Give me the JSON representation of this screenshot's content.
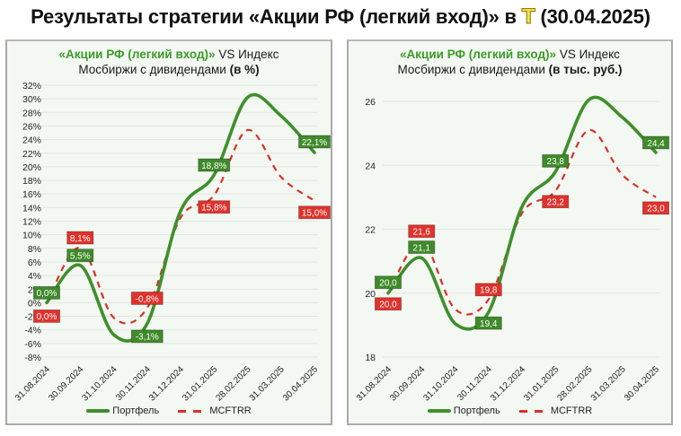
{
  "page": {
    "title_prefix": "Результаты стратегии «Акции РФ (легкий вход)» в",
    "logo": "Т",
    "title_suffix": "(30.04.2025)"
  },
  "colors": {
    "portfolio": "#3f8f2c",
    "portfolio_label_bg": "#3f8a2a",
    "index": "#d9302a",
    "index_label_bg": "#e0322c",
    "panel_bg": "#f4f8f2",
    "grid": "#e2e6e0"
  },
  "legend": {
    "portfolio": "Портфель",
    "index": "MCFTRR"
  },
  "charts": [
    {
      "title_green": "«Акции РФ (легкий вход)»",
      "title_rest_line1": " VS Индекс",
      "title_line2": "Мосбиржи с дивидендами ",
      "title_unit": "(в %)"
    },
    {
      "title_green": "«Акции РФ (легкий вход)»",
      "title_rest_line1": " VS Индекс",
      "title_line2": "Мосбиржи с дивидендами ",
      "title_unit": "(в тыс. руб.)"
    }
  ],
  "chart_data": [
    {
      "type": "line",
      "title": "«Акции РФ (легкий вход)» VS Индекс Мосбиржи с дивидендами (в %)",
      "xlabel": "",
      "ylabel": "",
      "x": [
        "31.08.2024",
        "30.09.2024",
        "31.10.2024",
        "30.11.2024",
        "31.12.2024",
        "31.01.2025",
        "28.02.2025",
        "31.03.2025",
        "30.04.2025"
      ],
      "series": [
        {
          "name": "Портфель",
          "style": "solid",
          "values": [
            0.0,
            5.5,
            -4.7,
            -3.1,
            13.5,
            18.8,
            30.2,
            27.5,
            22.1
          ]
        },
        {
          "name": "MCFTRR",
          "style": "dashed",
          "values": [
            0.0,
            8.1,
            -2.2,
            -0.8,
            12.5,
            15.8,
            25.4,
            18.5,
            15.0
          ]
        }
      ],
      "data_labels": {
        "Портфель": {
          "31.08.2024": "0,0%",
          "30.09.2024": "5,5%",
          "30.11.2024": "-3,1%",
          "31.01.2025": "18,8%",
          "30.04.2025": "22,1%"
        },
        "MCFTRR": {
          "31.08.2024": "0,0%",
          "30.09.2024": "8,1%",
          "30.11.2024": "-0,8%",
          "31.01.2025": "15,8%",
          "30.04.2025": "15,0%"
        }
      },
      "yticks": [
        "32%",
        "30%",
        "28%",
        "26%",
        "24%",
        "22%",
        "20%",
        "18%",
        "16%",
        "14%",
        "12%",
        "10%",
        "8%",
        "6%",
        "4%",
        "2%",
        "0%",
        "-2%",
        "-4%",
        "-6%",
        "-8%"
      ],
      "ylim": [
        -8,
        32
      ],
      "grid": true,
      "legend_position": "bottom"
    },
    {
      "type": "line",
      "title": "«Акции РФ (легкий вход)» VS Индекс Мосбиржи с дивидендами (в тыс. руб.)",
      "xlabel": "",
      "ylabel": "",
      "x": [
        "31.08.2024",
        "30.09.2024",
        "31.10.2024",
        "30.11.2024",
        "31.12.2024",
        "31.01.2025",
        "28.02.2025",
        "31.03.2025",
        "30.04.2025"
      ],
      "series": [
        {
          "name": "Портфель",
          "style": "solid",
          "values": [
            20.0,
            21.1,
            19.05,
            19.4,
            22.7,
            23.8,
            26.05,
            25.5,
            24.4
          ]
        },
        {
          "name": "MCFTRR",
          "style": "dashed",
          "values": [
            20.0,
            21.6,
            19.5,
            19.8,
            22.5,
            23.2,
            25.1,
            23.7,
            23.0
          ]
        }
      ],
      "data_labels": {
        "Портфель": {
          "31.08.2024": "20,0",
          "30.09.2024": "21,1",
          "30.11.2024": "19,4",
          "31.01.2025": "23,8",
          "30.04.2025": "24,4"
        },
        "MCFTRR": {
          "31.08.2024": "20,0",
          "30.09.2024": "21,6",
          "30.11.2024": "19,8",
          "31.01.2025": "23,2",
          "30.04.2025": "23,0"
        }
      },
      "yticks": [
        "26",
        "24",
        "22",
        "20",
        "18"
      ],
      "ylim": [
        18,
        26
      ],
      "grid": true,
      "legend_position": "bottom"
    }
  ]
}
